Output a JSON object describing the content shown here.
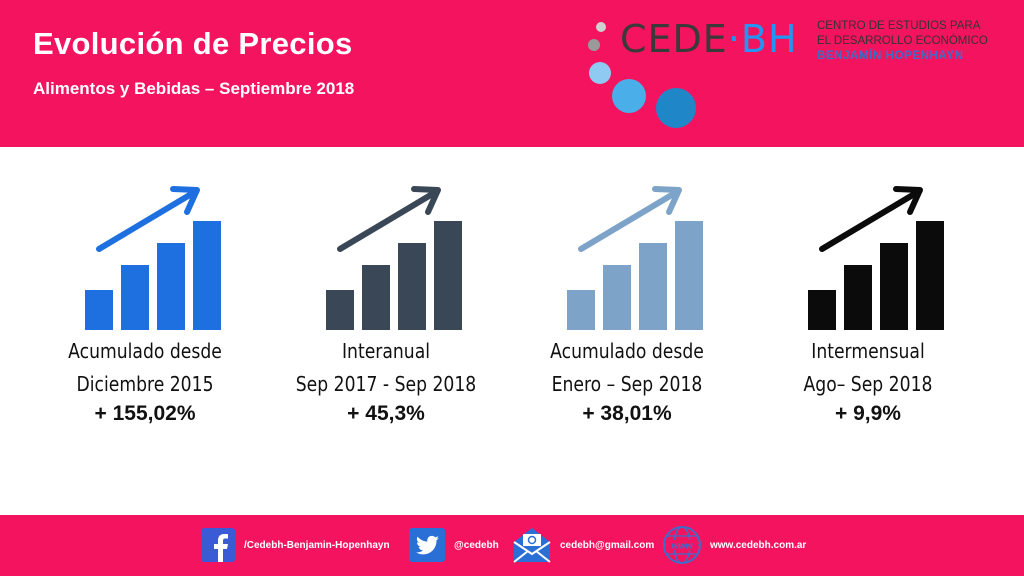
{
  "header": {
    "title": "Evolución de Precios",
    "subtitle": "Alimentos y Bebidas – Septiembre 2018",
    "bg_color": "#f4135f"
  },
  "logo": {
    "brand_left": "CEDE",
    "brand_dot": "·",
    "brand_right": "BH",
    "line1": "CENTRO DE ESTUDIOS PARA",
    "line2": "EL DESARROLLO ECONÓMICO",
    "line3": "BENJAMÍN HOPENHAYN"
  },
  "cards": [
    {
      "line1": "Acumulado desde",
      "line2": "Diciembre 2015",
      "value": "+ 155,02%",
      "color": "#1e6fe0",
      "icon": "bar-chart-up-icon"
    },
    {
      "line1": "Interanual",
      "line2": "Sep 2017 - Sep 2018",
      "value": "+ 45,3%",
      "color": "#3a4756",
      "icon": "bar-chart-up-icon"
    },
    {
      "line1": "Acumulado desde",
      "line2": "Enero – Sep 2018",
      "value": "+ 38,01%",
      "color": "#7da3c9",
      "icon": "bar-chart-up-icon"
    },
    {
      "line1": "Intermensual",
      "line2": "Ago– Sep 2018",
      "value": "+ 9,9%",
      "color": "#0b0b0b",
      "icon": "bar-chart-up-icon"
    }
  ],
  "footer": {
    "facebook": "/Cedebh-Benjamin-Hopenhayn",
    "twitter": "@cedebh",
    "email": "cedebh@gmail.com",
    "web": "www.cedebh.com.ar"
  }
}
